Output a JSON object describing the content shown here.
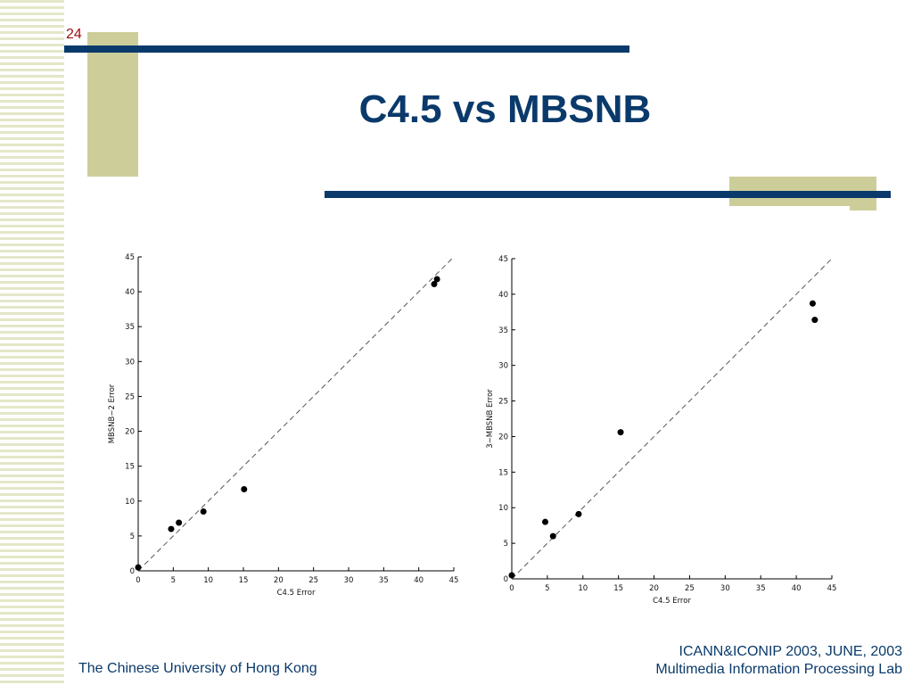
{
  "slide": {
    "number": "24",
    "title": "C4.5 vs MBSNB",
    "footer_left": "The Chinese University of Hong Kong",
    "footer_right_line1": "ICANN&ICONIP 2003, JUNE, 2003",
    "footer_right_line2": "Multimedia Information Processing Lab"
  },
  "colors": {
    "navy": "#0a3a6b",
    "tan": "#cdcd9a",
    "slide_number": "#a01010"
  },
  "chart_data": [
    {
      "type": "scatter",
      "xlabel": "C4.5 Error",
      "ylabel": "MBSNB−2 Error",
      "xlim": [
        0,
        45
      ],
      "ylim": [
        0,
        45
      ],
      "xticks": [
        0,
        5,
        10,
        15,
        20,
        25,
        30,
        35,
        40,
        45
      ],
      "yticks": [
        0,
        5,
        10,
        15,
        20,
        25,
        30,
        35,
        40,
        45
      ],
      "reference_line": "y = x (dashed)",
      "points": [
        {
          "x": 0.0,
          "y": 0.5
        },
        {
          "x": 4.7,
          "y": 6.0
        },
        {
          "x": 5.8,
          "y": 6.9
        },
        {
          "x": 9.3,
          "y": 8.5
        },
        {
          "x": 15.1,
          "y": 11.7
        },
        {
          "x": 42.2,
          "y": 41.1
        },
        {
          "x": 42.6,
          "y": 41.8
        }
      ]
    },
    {
      "type": "scatter",
      "xlabel": "C4.5 Error",
      "ylabel": "3−MBSNB Error",
      "xlim": [
        0,
        45
      ],
      "ylim": [
        0,
        45
      ],
      "xticks": [
        0,
        5,
        10,
        15,
        20,
        25,
        30,
        35,
        40,
        45
      ],
      "yticks": [
        0,
        5,
        10,
        15,
        20,
        25,
        30,
        35,
        40,
        45
      ],
      "reference_line": "y = x (dashed)",
      "points": [
        {
          "x": 0.0,
          "y": 0.5
        },
        {
          "x": 4.7,
          "y": 8.0
        },
        {
          "x": 5.8,
          "y": 6.0
        },
        {
          "x": 9.4,
          "y": 9.1
        },
        {
          "x": 15.3,
          "y": 20.6
        },
        {
          "x": 42.3,
          "y": 38.7
        },
        {
          "x": 42.6,
          "y": 36.4
        }
      ]
    }
  ]
}
